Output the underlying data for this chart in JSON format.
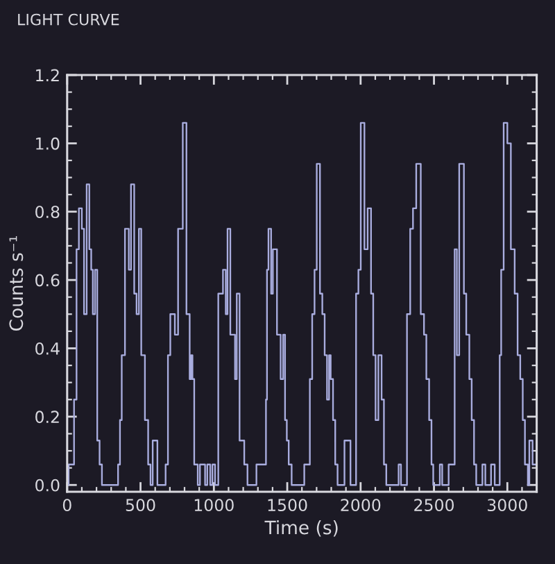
{
  "chart_data": {
    "type": "step",
    "title": "LIGHT CURVE",
    "xlabel": "Time (s)",
    "ylabel": "Counts s⁻¹",
    "color": "#a9addf",
    "x": [
      0,
      10,
      47,
      64,
      80,
      100,
      115,
      133,
      151,
      164,
      175,
      190,
      205,
      221,
      237,
      347,
      360,
      372,
      394,
      420,
      435,
      457,
      473,
      489,
      505,
      530,
      552,
      568,
      583,
      615,
      671,
      687,
      703,
      734,
      756,
      788,
      813,
      835,
      845,
      854,
      866,
      890,
      905,
      940,
      955,
      975,
      990,
      1008,
      1030,
      1062,
      1081,
      1093,
      1112,
      1144,
      1156,
      1175,
      1207,
      1229,
      1290,
      1355,
      1362,
      1372,
      1390,
      1402,
      1430,
      1455,
      1472,
      1485,
      1497,
      1510,
      1530,
      1616,
      1654,
      1670,
      1686,
      1701,
      1723,
      1739,
      1755,
      1771,
      1785,
      1796,
      1812,
      1827,
      1843,
      1890,
      1931,
      1969,
      1985,
      2001,
      2026,
      2048,
      2071,
      2086,
      2102,
      2121,
      2143,
      2159,
      2175,
      2259,
      2275,
      2316,
      2338,
      2357,
      2379,
      2410,
      2432,
      2448,
      2467,
      2483,
      2495,
      2540,
      2556,
      2600,
      2641,
      2656,
      2672,
      2704,
      2720,
      2741,
      2757,
      2773,
      2788,
      2830,
      2850,
      2889,
      2914,
      2948,
      2958,
      2975,
      3000,
      3024,
      3050,
      3070,
      3088,
      3105,
      3120,
      3140,
      3150,
      3172,
      3200
    ],
    "values": [
      0,
      0.06,
      0.25,
      0.69,
      0.81,
      0.75,
      0.5,
      0.88,
      0.69,
      0.63,
      0.5,
      0.63,
      0.13,
      0.06,
      0,
      0.06,
      0.19,
      0.38,
      0.75,
      0.63,
      0.88,
      0.56,
      0.5,
      0.75,
      0.38,
      0.19,
      0.06,
      0,
      0.13,
      0,
      0.06,
      0.38,
      0.5,
      0.44,
      0.75,
      1.06,
      0.5,
      0.31,
      0.38,
      0.31,
      0.06,
      0,
      0.06,
      0,
      0.06,
      0,
      0.06,
      0,
      0.56,
      0.63,
      0.5,
      0.75,
      0.44,
      0.31,
      0.56,
      0.13,
      0.06,
      0,
      0.06,
      0.25,
      0.63,
      0.75,
      0.56,
      0.69,
      0.44,
      0.31,
      0.44,
      0.19,
      0.13,
      0.06,
      0,
      0.06,
      0.31,
      0.5,
      0.63,
      0.94,
      0.56,
      0.5,
      0.38,
      0.25,
      0.38,
      0.31,
      0.19,
      0.06,
      0,
      0.13,
      0,
      0.56,
      0.63,
      1.06,
      0.69,
      0.81,
      0.56,
      0.38,
      0.19,
      0.38,
      0.25,
      0.06,
      0,
      0.06,
      0,
      0.5,
      0.75,
      0.81,
      0.94,
      0.5,
      0.44,
      0.31,
      0.19,
      0.06,
      0,
      0.06,
      0,
      0.06,
      0.69,
      0.38,
      0.94,
      0.56,
      0.44,
      0.31,
      0.19,
      0.06,
      0,
      0.06,
      0,
      0.06,
      0,
      0.38,
      0.63,
      1.06,
      1.0,
      0.69,
      0.56,
      0.38,
      0.31,
      0.19,
      0.06,
      0,
      0.13,
      0.06,
      0.06
    ],
    "xlim": [
      0,
      3200
    ],
    "ylim": [
      -0.02,
      1.2
    ],
    "xticks": [
      0,
      500,
      1000,
      1500,
      2000,
      2500,
      3000
    ],
    "yticks": [
      {
        "value": 0,
        "label": "0.0"
      },
      0.2,
      0.4,
      0.6,
      0.8,
      {
        "value": 1,
        "label": "1.0"
      },
      1.2
    ]
  }
}
